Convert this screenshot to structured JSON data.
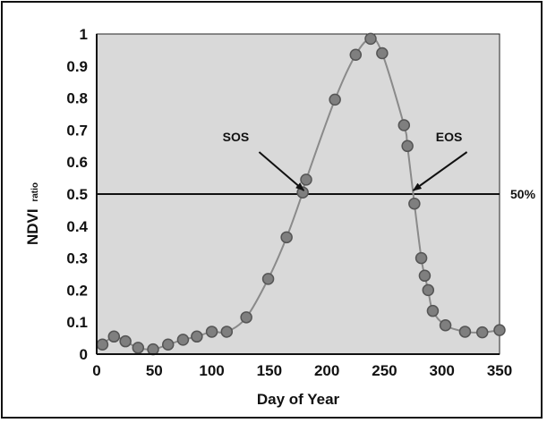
{
  "chart_data": {
    "type": "scatter",
    "title": "",
    "xlabel": "Day of Year",
    "ylabel": "NDVI",
    "ylabel_sub": "ratio",
    "xlim": [
      0,
      350
    ],
    "ylim": [
      0,
      1
    ],
    "x_ticks": [
      0,
      50,
      100,
      150,
      200,
      250,
      300,
      350
    ],
    "y_ticks": [
      0,
      0.1,
      0.2,
      0.3,
      0.4,
      0.5,
      0.6,
      0.7,
      0.8,
      0.9,
      1
    ],
    "y_tick_labels": [
      "0",
      "0.1",
      "0.2",
      "0.3",
      "0.4",
      "0.5",
      "0.6",
      "0.7",
      "0.8",
      "0.9",
      "1"
    ],
    "grid": false,
    "background": "#d9d9d9",
    "point_color": "#7f7f7f",
    "line_color": "#8a8a8a",
    "points": [
      {
        "x": 5,
        "y": 0.03
      },
      {
        "x": 15,
        "y": 0.055
      },
      {
        "x": 25,
        "y": 0.04
      },
      {
        "x": 36,
        "y": 0.02
      },
      {
        "x": 49,
        "y": 0.015
      },
      {
        "x": 62,
        "y": 0.03
      },
      {
        "x": 75,
        "y": 0.045
      },
      {
        "x": 87,
        "y": 0.055
      },
      {
        "x": 100,
        "y": 0.07
      },
      {
        "x": 113,
        "y": 0.07
      },
      {
        "x": 130,
        "y": 0.115
      },
      {
        "x": 149,
        "y": 0.235
      },
      {
        "x": 165,
        "y": 0.365
      },
      {
        "x": 179,
        "y": 0.505
      },
      {
        "x": 182,
        "y": 0.545
      },
      {
        "x": 207,
        "y": 0.795
      },
      {
        "x": 225,
        "y": 0.935
      },
      {
        "x": 238,
        "y": 0.985
      },
      {
        "x": 248,
        "y": 0.94
      },
      {
        "x": 267,
        "y": 0.715
      },
      {
        "x": 270,
        "y": 0.65
      },
      {
        "x": 276,
        "y": 0.47
      },
      {
        "x": 282,
        "y": 0.3
      },
      {
        "x": 285,
        "y": 0.245
      },
      {
        "x": 288,
        "y": 0.2
      },
      {
        "x": 292,
        "y": 0.135
      },
      {
        "x": 303,
        "y": 0.09
      },
      {
        "x": 320,
        "y": 0.07
      },
      {
        "x": 335,
        "y": 0.068
      },
      {
        "x": 350,
        "y": 0.075
      }
    ],
    "reference_line": {
      "y": 0.5,
      "label": "50%"
    },
    "annotations": [
      {
        "label": "SOS",
        "x": 180,
        "y": 0.5
      },
      {
        "label": "EOS",
        "x": 275,
        "y": 0.5
      }
    ]
  }
}
